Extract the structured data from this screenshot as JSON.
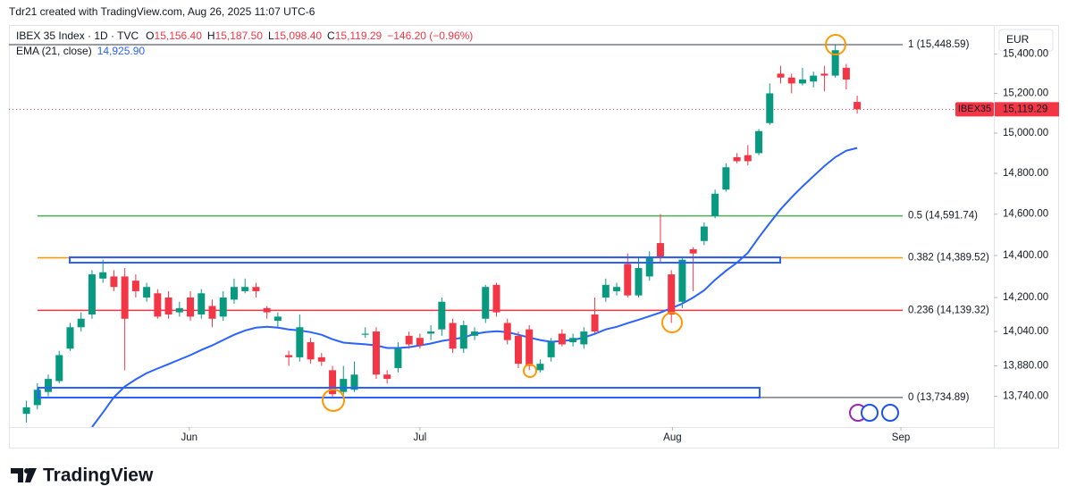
{
  "credit": "Tdr21 created with TradingView.com, Aug 26, 2025 11:07 UTC-6",
  "brand": "TradingView",
  "chart_data": {
    "type": "candlestick",
    "title": "IBEX 35 Index · 1D · TVC",
    "ohlc_legend": [
      {
        "key": "O",
        "label": "15,156.40"
      },
      {
        "key": "H",
        "label": "15,187.50"
      },
      {
        "key": "L",
        "label": "15,098.40"
      },
      {
        "key": "C",
        "label": "15,119.29"
      }
    ],
    "change_label": "−146.20 (−0.96%)",
    "currency": "EUR",
    "up_color": "#089981",
    "down_color": "#f23645",
    "log_scale": true,
    "grid": false,
    "ylim": [
      13600,
      15550
    ],
    "yticks": [
      {
        "value": 15400,
        "label": "15,400.00"
      },
      {
        "value": 15200,
        "label": "15,200.00"
      },
      {
        "value": 15000,
        "label": "15,000.00"
      },
      {
        "value": 14800,
        "label": "14,800.00"
      },
      {
        "value": 14600,
        "label": "14,600.00"
      },
      {
        "value": 14400,
        "label": "14,400.00"
      },
      {
        "value": 14200,
        "label": "14,200.00"
      },
      {
        "value": 14040,
        "label": "14,040.00"
      },
      {
        "value": 13880,
        "label": "13,880.00"
      },
      {
        "value": 13740,
        "label": "13,740.00"
      }
    ],
    "xlim": [
      -1.6,
      88.5
    ],
    "xticks": [
      {
        "value": 14.9,
        "label": "Jun"
      },
      {
        "value": 36.0,
        "label": "Jul"
      },
      {
        "value": 59.1,
        "label": "Aug"
      },
      {
        "value": 80.0,
        "label": "Sep"
      }
    ],
    "open": [
      13660,
      13700,
      13760,
      13810,
      13960,
      14060,
      14120,
      14290,
      14300,
      14300,
      14280,
      14200,
      14220,
      14200,
      14130,
      14200,
      14120,
      14160,
      14110,
      14190,
      14230,
      14250,
      14150,
      14090,
      13930,
      13920,
      13990,
      13920,
      13860,
      13760,
      13770,
      14025,
      14040,
      13840,
      13870,
      14020,
      14010,
      14030,
      14050,
      14080,
      13960,
      14020,
      14100,
      14260,
      14080,
      14020,
      14050,
      13860,
      13920,
      14030,
      13990,
      13980,
      14120,
      14200,
      14230,
      14360,
      14210,
      14300,
      14460,
      14310,
      14180,
      14430,
      14470,
      14590,
      14720,
      14880,
      14890,
      14900,
      15050,
      15300,
      15280,
      15250,
      15260,
      15300,
      15290,
      15330,
      15156.4
    ],
    "high": [
      13720,
      13800,
      13840,
      13950,
      14080,
      14130,
      14330,
      14380,
      14330,
      14340,
      14310,
      14270,
      14240,
      14230,
      14180,
      14230,
      14240,
      14190,
      14230,
      14290,
      14290,
      14270,
      14160,
      14130,
      13950,
      14120,
      14010,
      13940,
      13880,
      13880,
      13900,
      14060,
      14060,
      13860,
      13990,
      14040,
      14030,
      14070,
      14200,
      14100,
      14090,
      14060,
      14260,
      14270,
      14100,
      14040,
      14070,
      13910,
      14010,
      14050,
      14030,
      14060,
      14200,
      14290,
      14270,
      14410,
      14390,
      14420,
      14600,
      14330,
      14390,
      14440,
      14560,
      14720,
      14850,
      14900,
      14940,
      15020,
      15250,
      15340,
      15300,
      15330,
      15310,
      15340,
      15449,
      15350,
      15187.5
    ],
    "low": [
      13620,
      13680,
      13740,
      13800,
      13950,
      14040,
      14100,
      14270,
      14230,
      13860,
      14200,
      14180,
      14100,
      14100,
      14110,
      14090,
      14100,
      14060,
      14090,
      14170,
      14220,
      14200,
      14100,
      14060,
      13880,
      13900,
      13890,
      13880,
      13730,
      13740,
      13760,
      14010,
      13820,
      13800,
      13850,
      13960,
      13960,
      14000,
      14020,
      13940,
      13940,
      14000,
      14080,
      14110,
      13980,
      13870,
      13860,
      13850,
      13900,
      13970,
      13970,
      13960,
      14030,
      14180,
      14210,
      14200,
      14200,
      14280,
      14370,
      14080,
      14150,
      14230,
      14450,
      14580,
      14710,
      14850,
      14840,
      14890,
      15040,
      15250,
      15200,
      15240,
      15230,
      15210,
      15280,
      15220,
      15098.4
    ],
    "close": [
      13690,
      13770,
      13820,
      13930,
      14060,
      14100,
      14310,
      14320,
      14250,
      14100,
      14230,
      14250,
      14110,
      14120,
      14150,
      14110,
      14220,
      14100,
      14200,
      14250,
      14250,
      14230,
      14130,
      14110,
      13920,
      14060,
      13910,
      13900,
      13750,
      13820,
      13840,
      14030,
      13840,
      13820,
      13960,
      13980,
      13975,
      14040,
      14180,
      13960,
      14070,
      14040,
      14250,
      14130,
      14000,
      13890,
      13880,
      13890,
      13990,
      13980,
      14010,
      14040,
      14040,
      14260,
      14250,
      14210,
      14340,
      14390,
      14390,
      14120,
      14380,
      14410,
      14540,
      14700,
      14830,
      14860,
      14860,
      15010,
      15200,
      15280,
      15250,
      15270,
      15290,
      15290,
      15420,
      15270,
      15119.29
    ],
    "ema": {
      "name": "EMA (21, close)",
      "color": "#2962ff",
      "value_label": "14,925.90",
      "values": [
        null,
        null,
        null,
        null,
        null,
        null,
        13600,
        13666,
        13736,
        13785,
        13818,
        13847,
        13868,
        13888,
        13909,
        13930,
        13954,
        13975,
        14000,
        14025,
        14045,
        14058,
        14062,
        14058,
        14050,
        14045,
        14037,
        14025,
        14004,
        13988,
        13984,
        13980,
        13975,
        13963,
        13963,
        13967,
        13975,
        13984,
        13996,
        14004,
        14012,
        14029,
        14037,
        14041,
        14037,
        14025,
        14012,
        14000,
        13992,
        13996,
        14000,
        14012,
        14029,
        14050,
        14062,
        14079,
        14095,
        14112,
        14129,
        14150,
        14171,
        14200,
        14234,
        14284,
        14327,
        14366,
        14413,
        14487,
        14557,
        14624,
        14682,
        14736,
        14786,
        14836,
        14880,
        14912,
        14925.9
      ]
    },
    "fib_levels": [
      {
        "label": "1 (15,448.59)",
        "value": 15448.59,
        "color": "#787b86"
      },
      {
        "label": "0.5 (14,591.74)",
        "value": 14591.74,
        "color": "#4caf50"
      },
      {
        "label": "0.382 (14,389.52)",
        "value": 14389.52,
        "color": "#ff9800"
      },
      {
        "label": "0.236 (14,139.32)",
        "value": 14139.32,
        "color": "#f23645"
      },
      {
        "label": "0 (13,734.89)",
        "value": 13734.89,
        "color": "#787b86"
      }
    ],
    "last_price": {
      "symbol": "IBEX35",
      "value": 15119.29,
      "label": "15,119.29"
    }
  }
}
